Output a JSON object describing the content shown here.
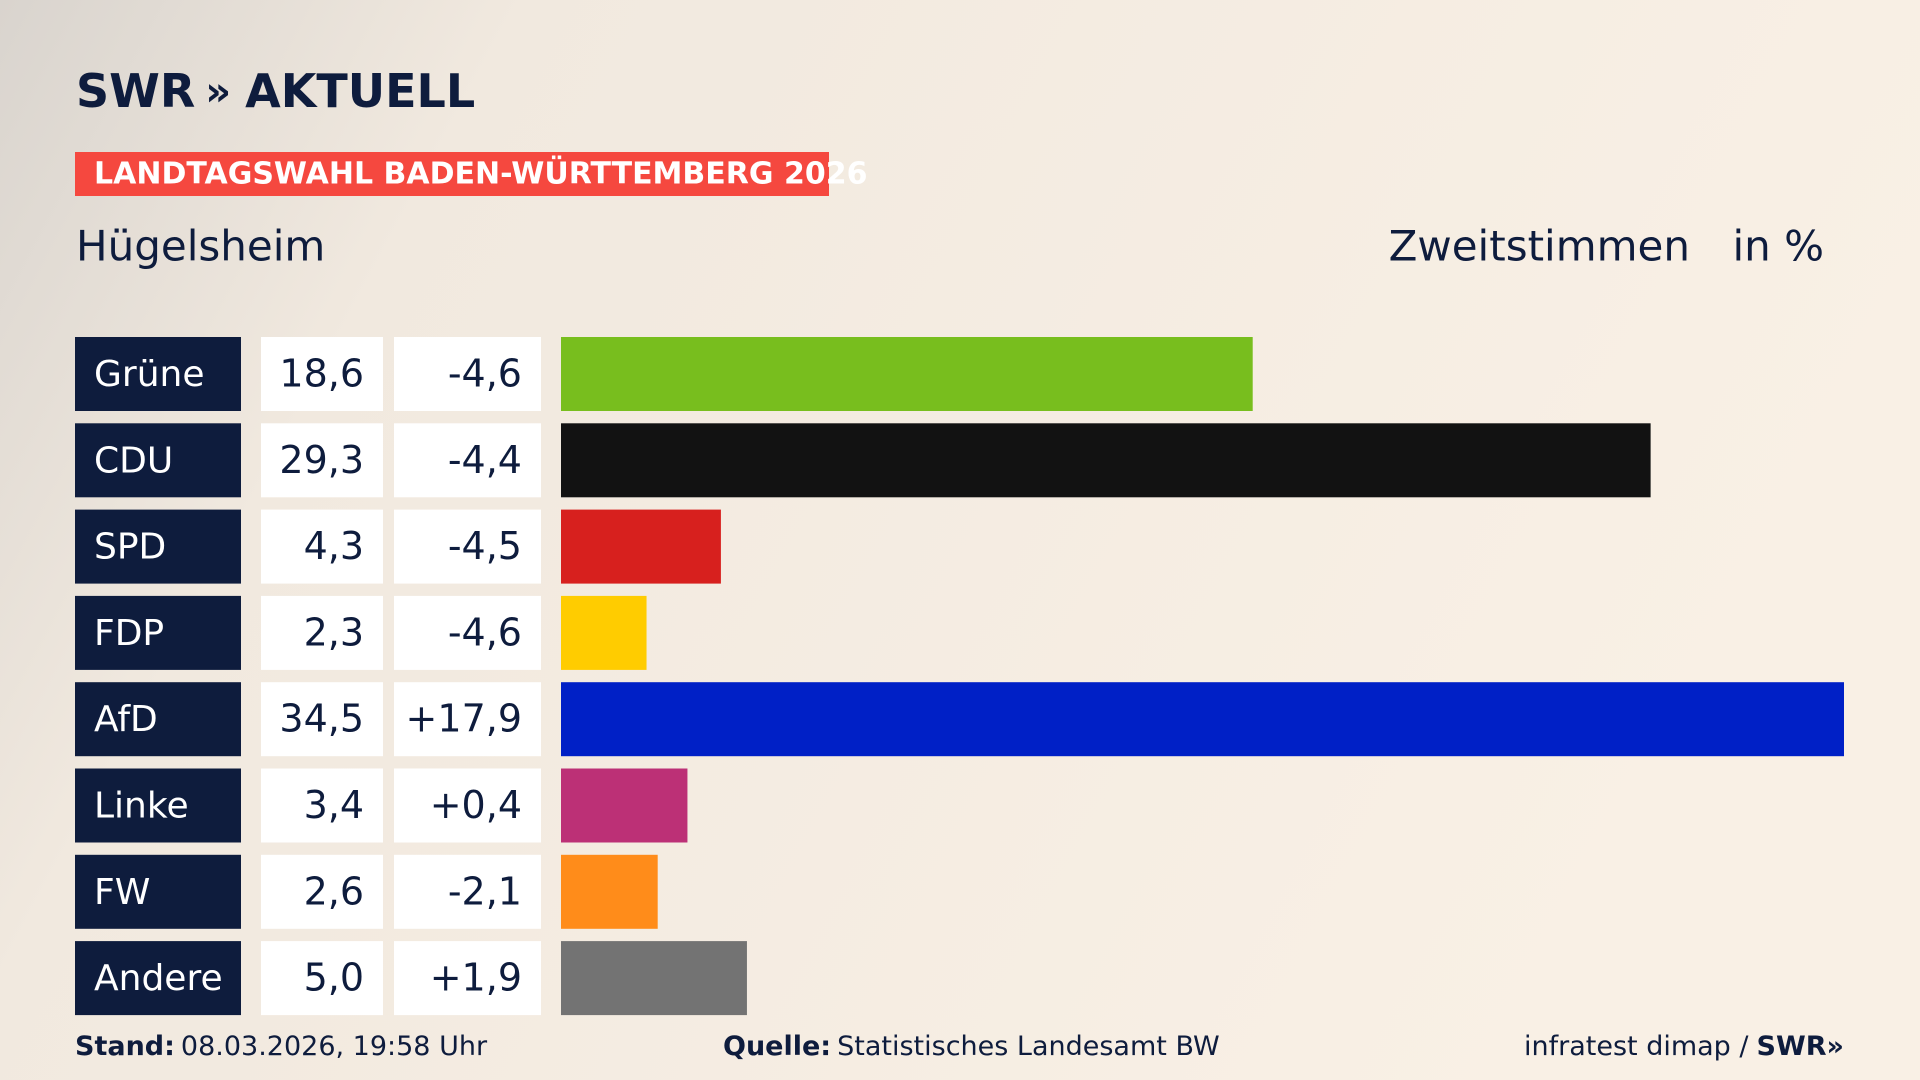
{
  "logo": "SWR",
  "logo_suffix": "AKTUELL",
  "banner": "LANDTAGSWAHL BADEN-WÜRTTEMBERG 2026",
  "footer": {
    "stand_label": "Stand:",
    "stand": "08.03.2026, 19:58 Uhr",
    "source_label": "Quelle:",
    "source": "Statistisches Landesamt BW",
    "credit": "infratest dimap /",
    "credit_logo": "SWR"
  },
  "chart_data": {
    "type": "bar",
    "title": "Hügelsheim",
    "measure": "Zweitstimmen",
    "unit": "in %",
    "categories": [
      "Grüne",
      "CDU",
      "SPD",
      "FDP",
      "AfD",
      "Linke",
      "FW",
      "Andere"
    ],
    "values": [
      18.6,
      29.3,
      4.3,
      2.3,
      34.5,
      3.4,
      2.6,
      5.0
    ],
    "value_labels": [
      "18,6",
      "29,3",
      "4,3",
      "2,3",
      "34,5",
      "3,4",
      "2,6",
      "5,0"
    ],
    "changes": [
      -4.6,
      -4.4,
      -4.5,
      -4.6,
      17.9,
      0.4,
      -2.1,
      1.9
    ],
    "change_labels": [
      "-4,6",
      "-4,4",
      "-4,5",
      "-4,6",
      "+17,9",
      "+0,4",
      "-2,1",
      "+1,9"
    ],
    "colors": [
      "#78be1e",
      "#121212",
      "#d7201e",
      "#ffcc00",
      "#0020c6",
      "#bc3076",
      "#ff8c1a",
      "#737373"
    ]
  }
}
